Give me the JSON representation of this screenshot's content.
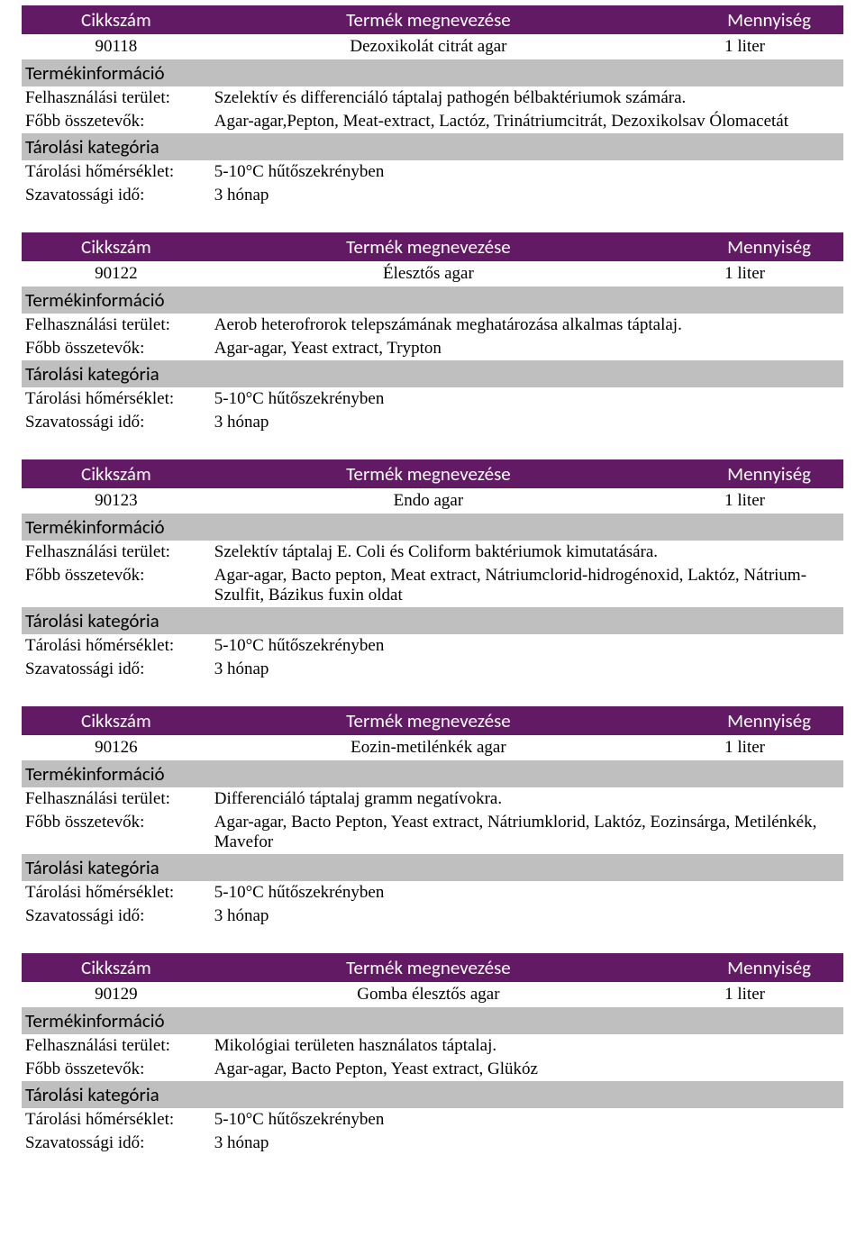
{
  "headers": {
    "code": "Cikkszám",
    "name": "Termék megnevezése",
    "qty": "Mennyiség",
    "info": "Termékinformáció",
    "use": "Felhasználási terület:",
    "ingredients": "Főbb összetevők:",
    "storageCat": "Tárolási kategória",
    "storageTemp": "Tárolási hőmérséklet:",
    "shelfLife": "Szavatossági idő:"
  },
  "colors": {
    "header_bg": "#611a63",
    "header_fg": "#ffffff",
    "sub_bg": "#bfbfbf",
    "text": "#000000"
  },
  "products": [
    {
      "code": "90118",
      "name": "Dezoxikolát citrát agar",
      "qty": "1 liter",
      "use": "Szelektív és differenciáló táptalaj pathogén bélbaktériumok számára.",
      "ingredients": "Agar-agar,Pepton, Meat-extract, Lactóz, Trinátriumcitrát, Dezoxikolsav Ólomacetát",
      "storageTemp": "5-10°C hűtőszekrényben",
      "shelfLife": "3 hónap"
    },
    {
      "code": "90122",
      "name": "Élesztős agar",
      "qty": "1 liter",
      "use": "Aerob heterofrorok telepszámának meghatározása alkalmas táptalaj.",
      "ingredients": "Agar-agar, Yeast extract, Trypton",
      "storageTemp": "5-10°C hűtőszekrényben",
      "shelfLife": "3 hónap"
    },
    {
      "code": "90123",
      "name": "Endo agar",
      "qty": "1 liter",
      "use": "Szelektív táptalaj E. Coli és Coliform baktériumok kimutatására.",
      "ingredients": "Agar-agar, Bacto pepton, Meat extract, Nátriumclorid-hidrogénoxid, Laktóz, Nátrium-Szulfit, Bázikus fuxin oldat",
      "storageTemp": "5-10°C hűtőszekrényben",
      "shelfLife": "3 hónap"
    },
    {
      "code": "90126",
      "name": "Eozin-metilénkék agar",
      "qty": "1 liter",
      "use": "Differenciáló táptalaj gramm negatívokra.",
      "ingredients": "Agar-agar, Bacto Pepton, Yeast extract, Nátriumklorid, Laktóz, Eozinsárga, Metilénkék, Mavefor",
      "storageTemp": "5-10°C hűtőszekrényben",
      "shelfLife": "3 hónap"
    },
    {
      "code": "90129",
      "name": "Gomba élesztős agar",
      "qty": "1 liter",
      "use": "Mikológiai területen használatos táptalaj.",
      "ingredients": "Agar-agar, Bacto Pepton, Yeast extract, Glükóz",
      "storageTemp": "5-10°C hűtőszekrényben",
      "shelfLife": "3 hónap"
    }
  ]
}
